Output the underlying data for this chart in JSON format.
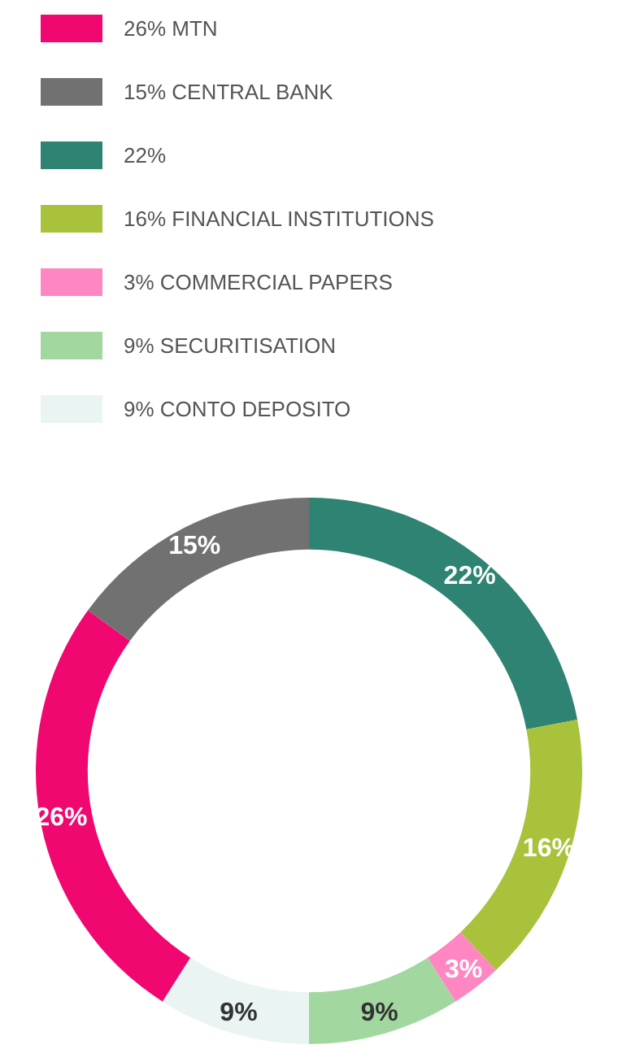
{
  "chart_data": {
    "type": "donut",
    "categories": [
      "MTN",
      "CENTRAL BANK",
      null,
      "FINANCIAL INSTITUTIONS",
      "COMMERCIAL PAPERS",
      "SECURITISATION",
      "CONTO DEPOSITO"
    ],
    "values": [
      26,
      15,
      22,
      16,
      3,
      9,
      9
    ],
    "value_labels": [
      "26%",
      "15%",
      "22%",
      "16%",
      "3%",
      "9%",
      "9%"
    ],
    "colors": [
      "#f0076f",
      "#717171",
      "#2e8373",
      "#a9c23b",
      "#ff87c1",
      "#a2d8a0",
      "#e9f4f3"
    ],
    "data_labels": true,
    "legend": "top left"
  }
}
